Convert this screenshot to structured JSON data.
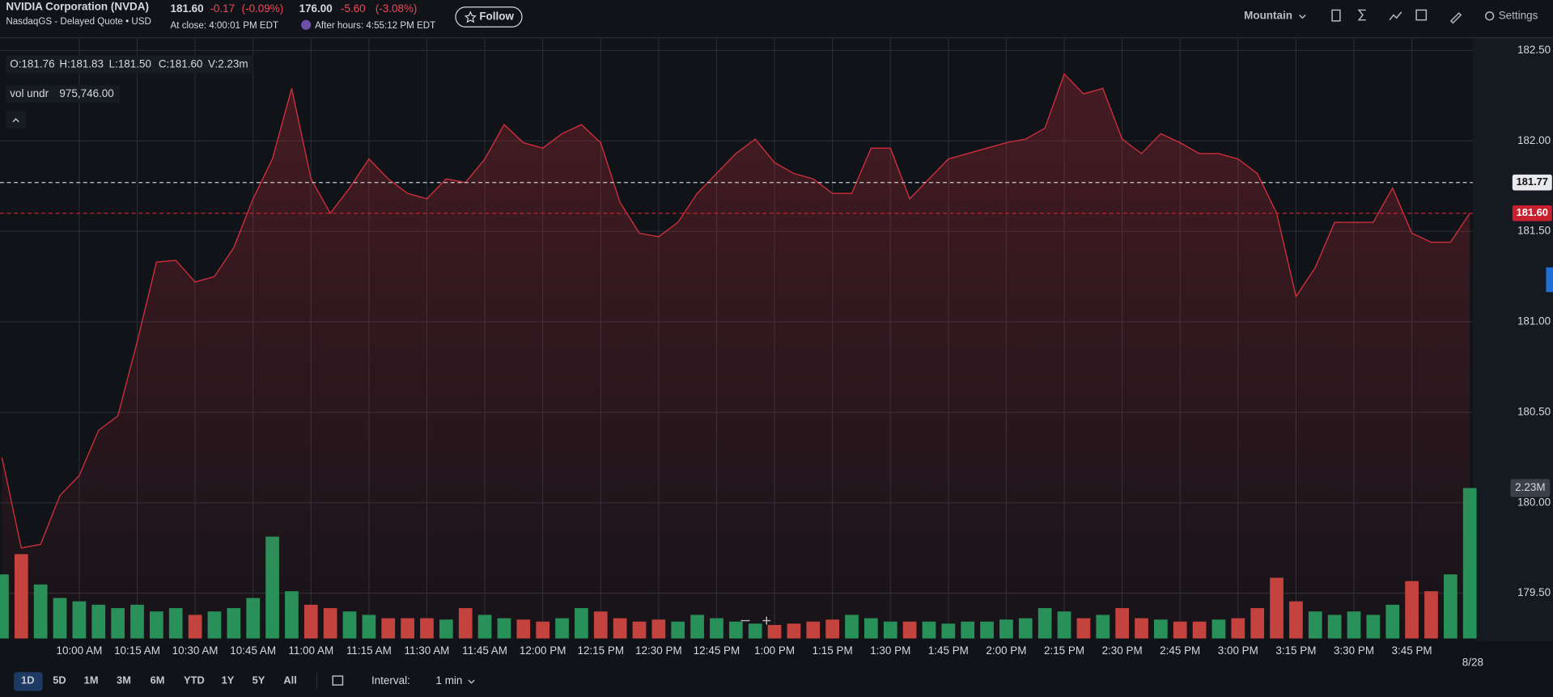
{
  "header": {
    "title": "NVIDIA Corporation (NVDA)",
    "subtitle": "NasdaqGS - Delayed Quote • USD",
    "close_price": "181.60",
    "close_change": "-0.17",
    "close_change_pct": "(-0.09%)",
    "close_time": "At close: 4:00:01 PM EDT",
    "after_price": "176.00",
    "after_change": "-5.60",
    "after_change_pct": "(-3.08%)",
    "after_time": "After hours: 4:55:12 PM EDT",
    "follow": "Follow"
  },
  "toolbar": {
    "chart_type": "Mountain",
    "settings": "Settings",
    "ranges": [
      "1D",
      "5D",
      "1M",
      "3M",
      "6M",
      "YTD",
      "1Y",
      "5Y",
      "All"
    ],
    "interval_label": "Interval:",
    "interval": "1 min"
  },
  "ohlc": {
    "open": "O:181.76",
    "high": "H:181.83",
    "low": "L:181.50",
    "close": "C:181.60",
    "volume": "V:2.23m"
  },
  "study": {
    "name": "vol undr",
    "value": "975,746.00"
  },
  "chart_data": {
    "type": "area",
    "color": "#d12f3c",
    "x": [
      "9:40 AM",
      "9:45 AM",
      "9:50 AM",
      "9:55 AM",
      "10:00 AM",
      "10:05 AM",
      "10:10 AM",
      "10:15 AM",
      "10:20 AM",
      "10:25 AM",
      "10:30 AM",
      "10:35 AM",
      "10:40 AM",
      "10:45 AM",
      "10:50 AM",
      "10:55 AM",
      "11:00 AM",
      "11:05 AM",
      "11:10 AM",
      "11:15 AM",
      "11:20 AM",
      "11:25 AM",
      "11:30 AM",
      "11:35 AM",
      "11:40 AM",
      "11:45 AM",
      "11:50 AM",
      "11:55 AM",
      "12:00 PM",
      "12:05 PM",
      "12:10 PM",
      "12:15 PM",
      "12:20 PM",
      "12:25 PM",
      "12:30 PM",
      "12:35 PM",
      "12:40 PM",
      "12:45 PM",
      "12:50 PM",
      "12:55 PM",
      "1:00 PM",
      "1:05 PM",
      "1:10 PM",
      "1:15 PM",
      "1:20 PM",
      "1:25 PM",
      "1:30 PM",
      "1:35 PM",
      "1:40 PM",
      "1:45 PM",
      "1:50 PM",
      "1:55 PM",
      "2:00 PM",
      "2:05 PM",
      "2:10 PM",
      "2:15 PM",
      "2:20 PM",
      "2:25 PM",
      "2:30 PM",
      "2:35 PM",
      "2:40 PM",
      "2:45 PM",
      "2:50 PM",
      "2:55 PM",
      "3:00 PM",
      "3:05 PM",
      "3:10 PM",
      "3:15 PM",
      "3:20 PM",
      "3:25 PM",
      "3:30 PM",
      "3:35 PM",
      "3:40 PM",
      "3:45 PM",
      "3:50 PM",
      "3:55 PM",
      "4:00 PM"
    ],
    "values": [
      180.25,
      179.75,
      179.77,
      180.04,
      180.15,
      180.4,
      180.48,
      180.89,
      181.33,
      181.34,
      181.22,
      181.25,
      181.41,
      181.68,
      181.9,
      182.29,
      181.79,
      181.6,
      181.74,
      181.9,
      181.79,
      181.71,
      181.68,
      181.79,
      181.77,
      181.9,
      182.09,
      181.99,
      181.96,
      182.04,
      182.09,
      181.99,
      181.66,
      181.49,
      181.47,
      181.55,
      181.71,
      181.82,
      181.93,
      182.01,
      181.88,
      181.82,
      181.79,
      181.71,
      181.71,
      181.96,
      181.96,
      181.68,
      181.79,
      181.9,
      181.93,
      181.96,
      181.99,
      182.01,
      182.07,
      182.37,
      182.26,
      182.29,
      182.01,
      181.93,
      182.04,
      181.99,
      181.93,
      181.93,
      181.9,
      181.82,
      181.6,
      181.14,
      181.3,
      181.55,
      181.55,
      181.55,
      181.74,
      181.49,
      181.44,
      181.44,
      181.6
    ],
    "volume": {
      "up_color": "#22945a",
      "down_color": "#c3443f",
      "values": [
        0.95,
        1.25,
        0.8,
        0.6,
        0.55,
        0.5,
        0.45,
        0.5,
        0.4,
        0.45,
        0.35,
        0.4,
        0.45,
        0.6,
        1.51,
        0.7,
        0.5,
        0.45,
        0.4,
        0.35,
        0.3,
        0.3,
        0.3,
        0.28,
        0.45,
        0.35,
        0.3,
        0.28,
        0.25,
        0.3,
        0.45,
        0.4,
        0.3,
        0.25,
        0.28,
        0.25,
        0.35,
        0.3,
        0.25,
        0.22,
        0.2,
        0.22,
        0.25,
        0.28,
        0.35,
        0.3,
        0.25,
        0.25,
        0.25,
        0.22,
        0.25,
        0.25,
        0.28,
        0.3,
        0.45,
        0.4,
        0.3,
        0.35,
        0.45,
        0.3,
        0.28,
        0.25,
        0.25,
        0.28,
        0.3,
        0.45,
        0.9,
        0.55,
        0.4,
        0.35,
        0.4,
        0.35,
        0.5,
        0.85,
        0.7,
        0.95,
        2.23
      ],
      "marker": {
        "value": 2.23,
        "label": "2.23M"
      }
    },
    "ylim": [
      179.25,
      182.57
    ],
    "yticks": [
      {
        "value": 179.5,
        "label": "179.50"
      },
      {
        "value": 180,
        "label": "180.00"
      },
      {
        "value": 180.5,
        "label": "180.50"
      },
      {
        "value": 181,
        "label": "181.00"
      },
      {
        "value": 181.5,
        "label": "181.50"
      },
      {
        "value": 182,
        "label": "182.00"
      },
      {
        "value": 182.5,
        "label": "182.50"
      }
    ],
    "xticks": [
      "10:00 AM",
      "10:15 AM",
      "10:30 AM",
      "10:45 AM",
      "11:00 AM",
      "11:15 AM",
      "11:30 AM",
      "11:45 AM",
      "12:00 PM",
      "12:15 PM",
      "12:30 PM",
      "12:45 PM",
      "1:00 PM",
      "1:15 PM",
      "1:30 PM",
      "1:45 PM",
      "2:00 PM",
      "2:15 PM",
      "2:30 PM",
      "2:45 PM",
      "3:00 PM",
      "3:15 PM",
      "3:30 PM",
      "3:45 PM"
    ],
    "prev_close": {
      "value": 181.77,
      "label": "181.77"
    },
    "last_price": {
      "value": 181.6,
      "label": "181.60"
    },
    "date_label": "8/28",
    "grid": true
  }
}
